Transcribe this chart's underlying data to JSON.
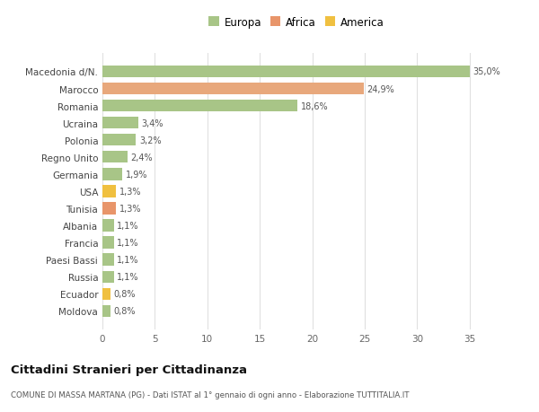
{
  "categories": [
    "Moldova",
    "Ecuador",
    "Russia",
    "Paesi Bassi",
    "Francia",
    "Albania",
    "Tunisia",
    "USA",
    "Germania",
    "Regno Unito",
    "Polonia",
    "Ucraina",
    "Romania",
    "Marocco",
    "Macedonia d/N."
  ],
  "values": [
    0.8,
    0.8,
    1.1,
    1.1,
    1.1,
    1.1,
    1.3,
    1.3,
    1.9,
    2.4,
    3.2,
    3.4,
    18.6,
    24.9,
    35.0
  ],
  "colors": [
    "#a8c587",
    "#f0c040",
    "#a8c587",
    "#a8c587",
    "#a8c587",
    "#a8c587",
    "#e8956a",
    "#f0c040",
    "#a8c587",
    "#a8c587",
    "#a8c587",
    "#a8c587",
    "#a8c587",
    "#e8a87c",
    "#a8c587"
  ],
  "labels": [
    "0,8%",
    "0,8%",
    "1,1%",
    "1,1%",
    "1,1%",
    "1,1%",
    "1,3%",
    "1,3%",
    "1,9%",
    "2,4%",
    "3,2%",
    "3,4%",
    "18,6%",
    "24,9%",
    "35,0%"
  ],
  "legend": [
    {
      "label": "Europa",
      "color": "#a8c587"
    },
    {
      "label": "Africa",
      "color": "#e8956a"
    },
    {
      "label": "America",
      "color": "#f0c040"
    }
  ],
  "title": "Cittadini Stranieri per Cittadinanza",
  "subtitle": "COMUNE DI MASSA MARTANA (PG) - Dati ISTAT al 1° gennaio di ogni anno - Elaborazione TUTTITALIA.IT",
  "xlim": [
    0,
    37
  ],
  "xticks": [
    0,
    5,
    10,
    15,
    20,
    25,
    30,
    35
  ],
  "background_color": "#ffffff",
  "grid_color": "#e0e0e0",
  "bar_height": 0.7
}
